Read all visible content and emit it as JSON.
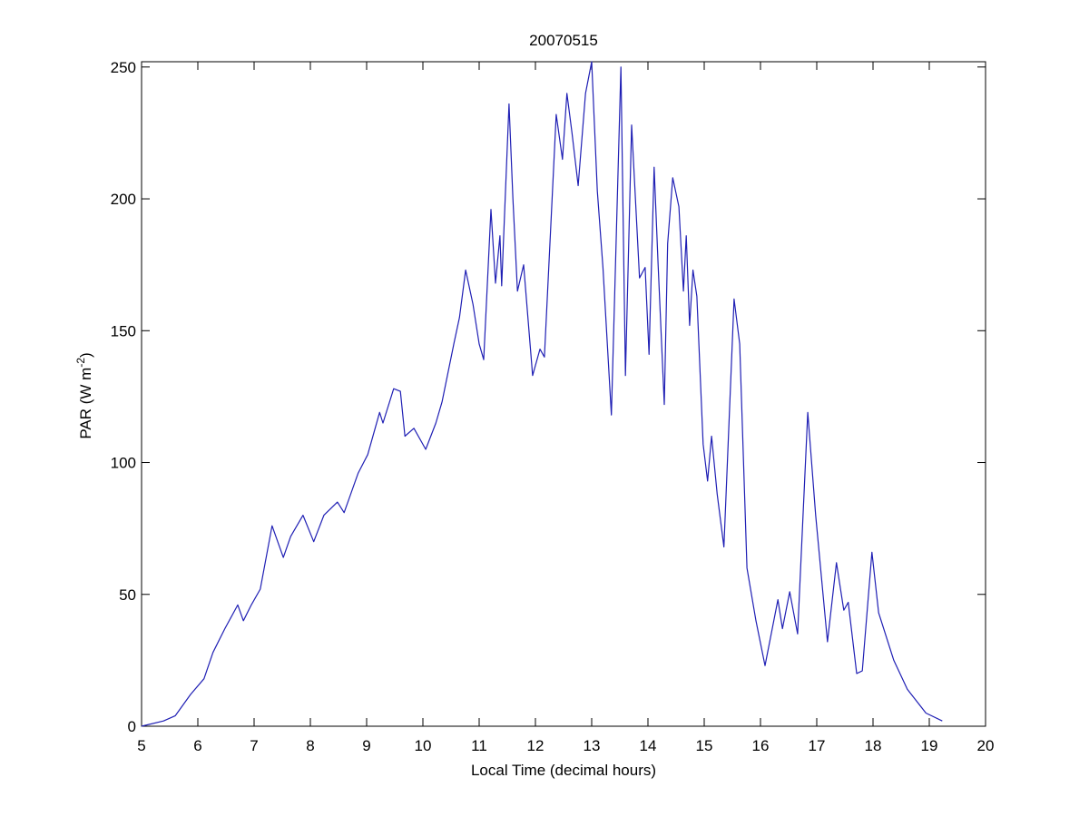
{
  "chart_data": {
    "type": "line",
    "title": "20070515",
    "xlabel": "Local Time (decimal hours)",
    "ylabel": [
      "PAR (W m",
      "-2",
      ")"
    ],
    "xlim": [
      5,
      20
    ],
    "ylim": [
      0,
      252
    ],
    "xticks": [
      5,
      6,
      7,
      8,
      9,
      10,
      11,
      12,
      13,
      14,
      15,
      16,
      17,
      18,
      19,
      20
    ],
    "yticks": [
      0,
      50,
      100,
      150,
      200,
      250
    ],
    "series": [
      {
        "color": "#1f1fb4",
        "x": [
          5.0,
          5.39,
          5.6,
          5.87,
          6.11,
          6.27,
          6.48,
          6.71,
          6.81,
          6.95,
          7.11,
          7.32,
          7.52,
          7.65,
          7.87,
          8.06,
          8.24,
          8.48,
          8.6,
          8.85,
          9.02,
          9.23,
          9.29,
          9.48,
          9.6,
          9.68,
          9.84,
          10.05,
          10.23,
          10.34,
          10.55,
          10.65,
          10.76,
          10.89,
          11.0,
          11.08,
          11.21,
          11.29,
          11.37,
          11.4,
          11.53,
          11.6,
          11.68,
          11.79,
          11.95,
          12.08,
          12.16,
          12.37,
          12.48,
          12.56,
          12.65,
          12.76,
          12.89,
          13.0,
          13.1,
          13.2,
          13.35,
          13.52,
          13.6,
          13.71,
          13.85,
          13.95,
          14.02,
          14.11,
          14.18,
          14.29,
          14.35,
          14.44,
          14.55,
          14.63,
          14.68,
          14.74,
          14.8,
          14.87,
          14.98,
          15.06,
          15.13,
          15.23,
          15.35,
          15.53,
          15.63,
          15.76,
          15.92,
          16.08,
          16.31,
          16.39,
          16.52,
          16.66,
          16.84,
          16.98,
          17.19,
          17.35,
          17.48,
          17.56,
          17.71,
          17.81,
          17.98,
          18.1,
          18.37,
          18.61,
          18.94,
          19.23
        ],
        "values": [
          0,
          2,
          4,
          12,
          18,
          28,
          37,
          46,
          40,
          46,
          52,
          76,
          64,
          72,
          80,
          70,
          80,
          85,
          81,
          96,
          103,
          119,
          115,
          128,
          127,
          110,
          113,
          105,
          115,
          123,
          145,
          155,
          173,
          160,
          145,
          139,
          196,
          168,
          186,
          167,
          236,
          200,
          165,
          175,
          133,
          143,
          140,
          232,
          215,
          240,
          225,
          205,
          240,
          252,
          203,
          174,
          118,
          250,
          133,
          228,
          170,
          174,
          141,
          212,
          175,
          122,
          183,
          208,
          197,
          165,
          186,
          152,
          173,
          163,
          107,
          93,
          110,
          88,
          68,
          162,
          145,
          60,
          40,
          23,
          48,
          37,
          51,
          35,
          119,
          80,
          32,
          62,
          44,
          47,
          20,
          21,
          66,
          43,
          25,
          14,
          5,
          2
        ]
      }
    ]
  }
}
